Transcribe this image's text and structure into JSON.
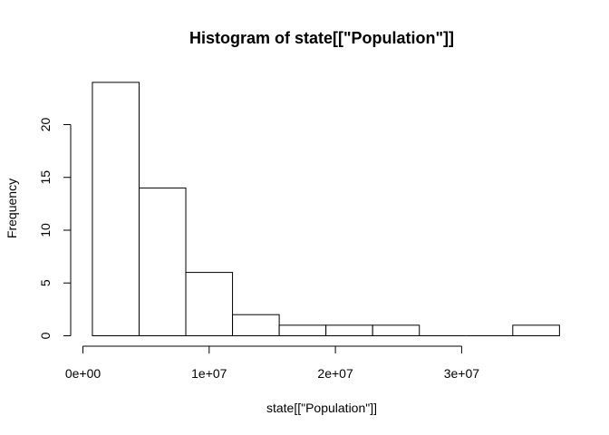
{
  "chart_data": {
    "type": "bar",
    "subtype": "histogram",
    "title": "Histogram of state[[\"Population\"]]",
    "xlabel": "state[[\"Population\"]]",
    "ylabel": "Frequency",
    "bins": [
      {
        "start": 750000,
        "end": 4450000,
        "count": 24
      },
      {
        "start": 4450000,
        "end": 8150000,
        "count": 14
      },
      {
        "start": 8150000,
        "end": 11850000,
        "count": 6
      },
      {
        "start": 11850000,
        "end": 15550000,
        "count": 2
      },
      {
        "start": 15550000,
        "end": 19250000,
        "count": 1
      },
      {
        "start": 19250000,
        "end": 22950000,
        "count": 1
      },
      {
        "start": 22950000,
        "end": 26650000,
        "count": 1
      },
      {
        "start": 26650000,
        "end": 30350000,
        "count": 0
      },
      {
        "start": 30350000,
        "end": 34050000,
        "count": 0
      },
      {
        "start": 34050000,
        "end": 37750000,
        "count": 1
      }
    ],
    "xlim": [
      0,
      30000000
    ],
    "ylim": [
      0,
      24
    ],
    "x_ticks": [
      {
        "value": 0,
        "label": "0e+00"
      },
      {
        "value": 10000000,
        "label": "1e+07"
      },
      {
        "value": 20000000,
        "label": "2e+07"
      },
      {
        "value": 30000000,
        "label": "3e+07"
      }
    ],
    "y_ticks": [
      {
        "value": 0,
        "label": "0"
      },
      {
        "value": 5,
        "label": "5"
      },
      {
        "value": 10,
        "label": "10"
      },
      {
        "value": 15,
        "label": "15"
      },
      {
        "value": 20,
        "label": "20"
      }
    ],
    "grid": false,
    "bar_fill": "#ffffff",
    "bar_stroke": "#000000"
  }
}
